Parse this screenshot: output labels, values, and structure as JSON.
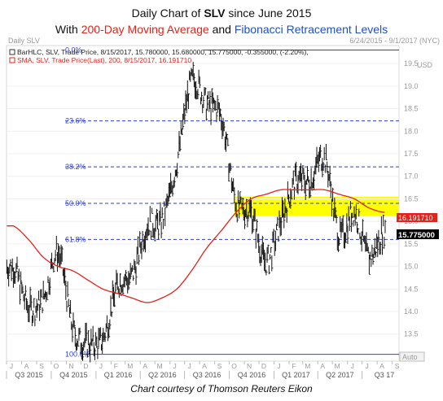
{
  "title": {
    "line1_prefix": "Daily Chart of ",
    "line1_ticker": "SLV",
    "line1_suffix": " since June 2015",
    "line2_prefix": "With ",
    "line2_ma": "200-Day Moving Average",
    "line2_and": " and ",
    "line2_fib": "Fibonacci Retracement Levels"
  },
  "panel": {
    "name": "Daily SLV",
    "date_range": "6/24/2015 - 9/1/2017 (NYC)",
    "currency": "USD",
    "auto": "Auto"
  },
  "legend": {
    "line1": "BarHLC, SLV, Trade Price, 8/15/2017, 15.780000, 15.680000, 15.775000, -0.355000, (-2.20%),",
    "line2": "SMA, SLV, Trade Price(Last), 200, 8/15/2017, 16.191710"
  },
  "price_tags": {
    "sma": "16.191710",
    "last": "15.775000"
  },
  "credit": "Chart courtesy of Thomson Reuters Eikon",
  "colors": {
    "price_bars": "#111111",
    "sma": "#e2231a",
    "fib": "#2a3fd1",
    "highlight": "#ffff00",
    "axis_text": "#9a9a9a"
  },
  "chart_data": {
    "type": "line",
    "ylim": [
      12.9,
      19.9
    ],
    "y_ticks": [
      13.5,
      14,
      14.5,
      15,
      15.5,
      16,
      16.5,
      17,
      17.5,
      18,
      18.5,
      19,
      19.5
    ],
    "x_months": [
      "J",
      "A",
      "S",
      "O",
      "N",
      "D",
      "J",
      "F",
      "M",
      "A",
      "M",
      "J",
      "J",
      "A",
      "S",
      "O",
      "N",
      "D",
      "J",
      "F",
      "M",
      "A",
      "M",
      "J",
      "J",
      "A",
      "S"
    ],
    "x_quarters": [
      "Q3 2015",
      "Q4 2015",
      "Q1 2016",
      "Q2 2016",
      "Q3 2016",
      "Q4 2016",
      "Q1 2017",
      "Q2 2017",
      "Q3 17"
    ],
    "fibonacci": [
      {
        "label": "0.0%",
        "value": 19.8
      },
      {
        "label": "23.6%",
        "value": 18.23
      },
      {
        "label": "38.2%",
        "value": 17.21
      },
      {
        "label": "50.0%",
        "value": 16.4
      },
      {
        "label": "61.8%",
        "value": 15.6
      },
      {
        "label": "100.0%",
        "value": 13.05
      }
    ],
    "highlight_band": [
      16.12,
      16.55
    ],
    "series": [
      {
        "name": "SLV",
        "x": [
          "2015-07",
          "2015-08",
          "2015-09",
          "2015-10",
          "2015-11",
          "2015-12",
          "2016-01",
          "2016-02",
          "2016-03",
          "2016-04",
          "2016-05",
          "2016-06",
          "2016-07",
          "2016-08",
          "2016-09",
          "2016-10",
          "2016-11",
          "2016-12",
          "2017-01",
          "2017-02",
          "2017-03",
          "2017-04",
          "2017-05",
          "2017-06",
          "2017-07",
          "2017-08"
        ],
        "values": [
          15.0,
          14.1,
          14.3,
          15.3,
          13.6,
          13.3,
          13.4,
          14.6,
          14.8,
          15.9,
          16.0,
          17.3,
          19.1,
          18.6,
          18.3,
          16.4,
          16.2,
          15.1,
          16.0,
          16.9,
          16.9,
          17.4,
          15.7,
          16.2,
          15.2,
          15.8
        ]
      },
      {
        "name": "SMA",
        "x": [
          "2015-07",
          "2015-08",
          "2015-09",
          "2015-10",
          "2015-11",
          "2015-12",
          "2016-01",
          "2016-02",
          "2016-03",
          "2016-04",
          "2016-05",
          "2016-06",
          "2016-07",
          "2016-08",
          "2016-09",
          "2016-10",
          "2016-11",
          "2016-12",
          "2017-01",
          "2017-02",
          "2017-03",
          "2017-04",
          "2017-05",
          "2017-06",
          "2017-07",
          "2017-08"
        ],
        "values": [
          15.9,
          15.6,
          15.2,
          15.0,
          14.9,
          14.7,
          14.5,
          14.4,
          14.3,
          14.2,
          14.3,
          14.5,
          14.9,
          15.4,
          15.8,
          16.2,
          16.5,
          16.6,
          16.7,
          16.7,
          16.7,
          16.7,
          16.6,
          16.5,
          16.3,
          16.2
        ]
      }
    ]
  }
}
